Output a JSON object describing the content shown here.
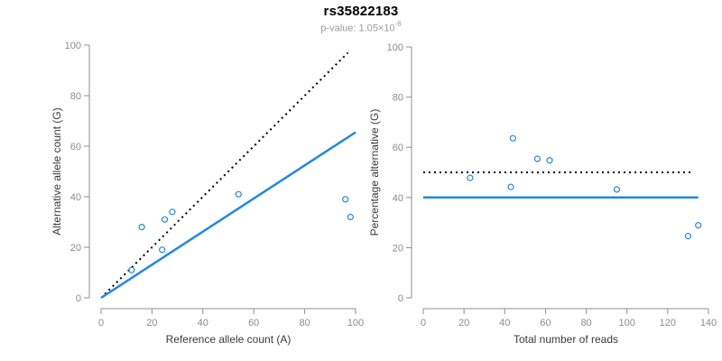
{
  "header": {
    "title": "rs35822183",
    "pvalue_prefix": "p-value: 1.05×10",
    "pvalue_exponent": "-6"
  },
  "colors": {
    "accent_blue": "#2189e4",
    "axis_gray": "#8f8f8f",
    "tick_text_gray": "#8c8c8c",
    "label_dark": "#3a3a3a",
    "dotted_black": "#000000"
  },
  "chart_data": [
    {
      "type": "scatter",
      "name": "allele-count-scatter",
      "xlabel": "Reference allele count (A)",
      "ylabel": "Alternative allele count (G)",
      "xlim": [
        0,
        100
      ],
      "ylim": [
        0,
        100
      ],
      "xticks": [
        0,
        20,
        40,
        60,
        80,
        100
      ],
      "yticks": [
        0,
        20,
        40,
        60,
        80,
        100
      ],
      "grid": false,
      "points": [
        [
          12,
          11
        ],
        [
          16,
          28
        ],
        [
          24,
          19
        ],
        [
          25,
          31
        ],
        [
          28,
          34
        ],
        [
          54,
          41
        ],
        [
          96,
          39
        ],
        [
          98,
          32
        ]
      ],
      "lines": [
        {
          "name": "identity-dotted-line",
          "style": "dotted",
          "color": "#000000",
          "width": 2,
          "x1": 1.5,
          "y1": 1.5,
          "x2": 97,
          "y2": 97
        },
        {
          "name": "fit-line",
          "style": "solid",
          "color": "#2189e4",
          "width": 2.5,
          "x1": 0,
          "y1": 0,
          "x2": 100,
          "y2": 65.5
        }
      ]
    },
    {
      "type": "scatter",
      "name": "percentage-scatter",
      "xlabel": "Total number of reads",
      "ylabel": "Percentage alternative (G)",
      "xlim": [
        0,
        140
      ],
      "ylim": [
        0,
        100
      ],
      "xticks": [
        0,
        20,
        40,
        60,
        80,
        100,
        120,
        140
      ],
      "yticks": [
        0,
        20,
        40,
        60,
        80,
        100
      ],
      "grid": false,
      "points": [
        [
          23,
          47.8
        ],
        [
          44,
          63.6
        ],
        [
          43,
          44.2
        ],
        [
          56,
          55.4
        ],
        [
          62,
          54.8
        ],
        [
          95,
          43.2
        ],
        [
          130,
          24.6
        ],
        [
          135,
          28.9
        ]
      ],
      "lines": [
        {
          "name": "expected-50pct-dotted-line",
          "style": "dotted",
          "color": "#000000",
          "width": 2,
          "x1": 0,
          "y1": 50,
          "x2": 132,
          "y2": 50
        },
        {
          "name": "observed-40pct-line",
          "style": "solid",
          "color": "#2189e4",
          "width": 2.5,
          "x1": 0,
          "y1": 40,
          "x2": 135,
          "y2": 40
        }
      ]
    }
  ]
}
